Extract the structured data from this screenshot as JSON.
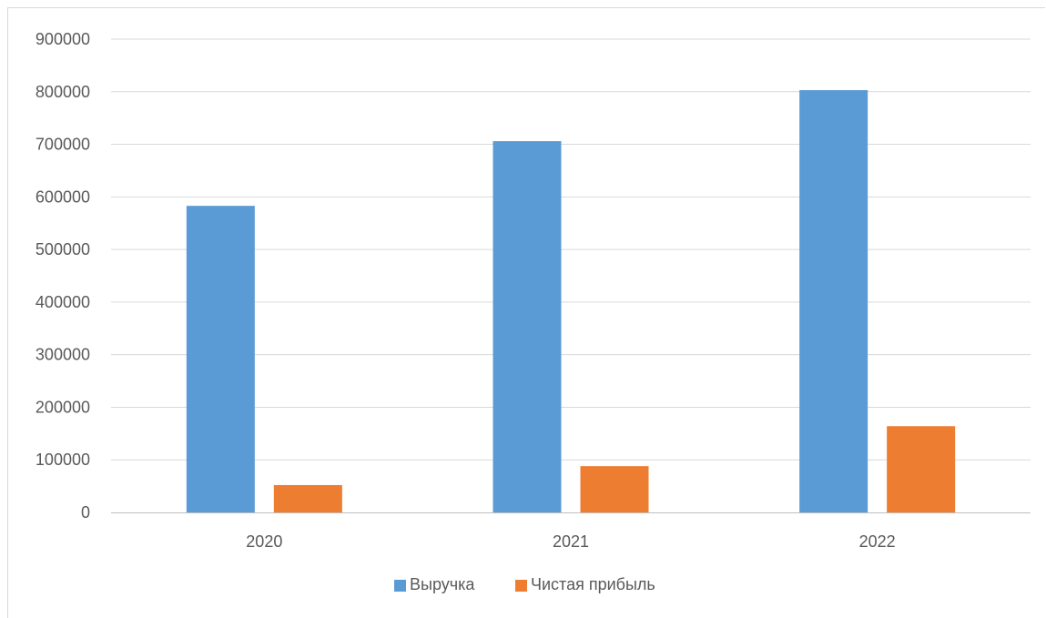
{
  "chart_data": {
    "type": "bar",
    "categories": [
      "2020",
      "2021",
      "2022"
    ],
    "series": [
      {
        "name": "Выручка",
        "values": [
          583000,
          706000,
          803000
        ],
        "color": "#5b9bd5"
      },
      {
        "name": "Чистая прибыль",
        "values": [
          52000,
          88000,
          164000
        ],
        "color": "#ed7d31"
      }
    ],
    "ylim": [
      0,
      900000
    ],
    "yticks": [
      0,
      100000,
      200000,
      300000,
      400000,
      500000,
      600000,
      700000,
      800000,
      900000
    ],
    "ytick_labels": [
      "0",
      "100000",
      "200000",
      "300000",
      "400000",
      "500000",
      "600000",
      "700000",
      "800000",
      "900000"
    ],
    "grid": true,
    "legend_position": "bottom",
    "gridline_color": "#d9d9d9",
    "axis_color": "#bfbfbf",
    "text_color": "#595959"
  }
}
